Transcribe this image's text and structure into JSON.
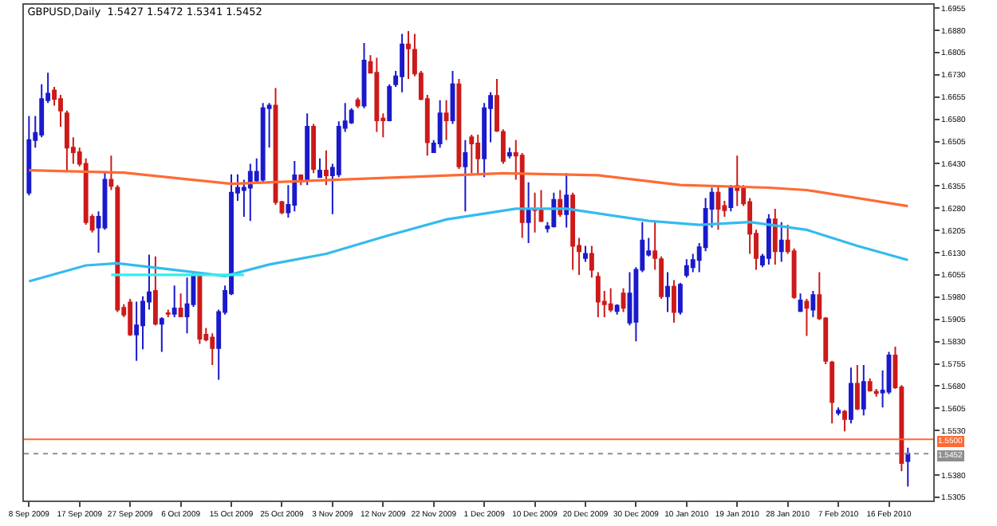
{
  "chart_data": {
    "type": "candlestick",
    "title": "GBPUSD,Daily  1.5427 1.5472 1.5341 1.5452",
    "categories": [
      "8 Sep 2009",
      null,
      null,
      null,
      null,
      null,
      null,
      null,
      "17 Sep 2009",
      null,
      null,
      null,
      null,
      null,
      null,
      null,
      "27 Sep 2009",
      null,
      null,
      null,
      null,
      null,
      null,
      null,
      "6 Oct 2009",
      null,
      null,
      null,
      null,
      null,
      null,
      null,
      "15 Oct 2009",
      null,
      null,
      null,
      null,
      null,
      null,
      null,
      "25 Oct 2009",
      null,
      null,
      null,
      null,
      null,
      null,
      null,
      "3 Nov 2009",
      null,
      null,
      null,
      null,
      null,
      null,
      null,
      "12 Nov 2009",
      null,
      null,
      null,
      null,
      null,
      null,
      null,
      "22 Nov 2009",
      null,
      null,
      null,
      null,
      null,
      null,
      null,
      "1 Dec 2009",
      null,
      null,
      null,
      null,
      null,
      null,
      null,
      "10 Dec 2009",
      null,
      null,
      null,
      null,
      null,
      null,
      null,
      "20 Dec 2009",
      null,
      null,
      null,
      null,
      null,
      null,
      null,
      "30 Dec 2009",
      null,
      null,
      null,
      null,
      null,
      null,
      null,
      "10 Jan 2010",
      null,
      null,
      null,
      null,
      null,
      null,
      null,
      "19 Jan 2010",
      null,
      null,
      null,
      null,
      null,
      null,
      null,
      "28 Jan 2010",
      null,
      null,
      null,
      null,
      null,
      null,
      null,
      "7 Feb 2010",
      null,
      null,
      null,
      null,
      null,
      null,
      null,
      "16 Feb 2010",
      null,
      null,
      null
    ],
    "ohlc": [
      [
        1.6332,
        1.6591,
        1.6323,
        1.651
      ],
      [
        1.651,
        1.6591,
        1.6484,
        1.6534
      ],
      [
        1.6528,
        1.6698,
        1.6519,
        1.6648
      ],
      [
        1.6644,
        1.6737,
        1.6635,
        1.6666
      ],
      [
        1.6677,
        1.6689,
        1.6626,
        1.6648
      ],
      [
        1.6648,
        1.6662,
        1.6555,
        1.6609
      ],
      [
        1.66,
        1.6609,
        1.6403,
        1.6484
      ],
      [
        1.6484,
        1.6519,
        1.643,
        1.6469
      ],
      [
        1.6469,
        1.6484,
        1.6421,
        1.643
      ],
      [
        1.643,
        1.6448,
        1.6224,
        1.6233
      ],
      [
        1.6251,
        1.626,
        1.6198,
        1.6207
      ],
      [
        1.6215,
        1.6269,
        1.613,
        1.6251
      ],
      [
        1.6215,
        1.6403,
        1.6207,
        1.6376
      ],
      [
        1.6376,
        1.6457,
        1.6341,
        1.6355
      ],
      [
        1.6349,
        1.6358,
        1.593,
        1.5938
      ],
      [
        1.5944,
        1.5956,
        1.5912,
        1.5921
      ],
      [
        1.5962,
        1.5974,
        1.5849,
        1.5854
      ],
      [
        1.5854,
        1.5965,
        1.5765,
        1.5885
      ],
      [
        1.5885,
        1.5983,
        1.5804,
        1.5965
      ],
      [
        1.5965,
        1.6123,
        1.5938,
        1.5996
      ],
      [
        1.6001,
        1.6117,
        1.5885,
        1.589
      ],
      [
        1.589,
        1.5912,
        1.5795,
        1.5906
      ],
      [
        1.5926,
        1.5938,
        1.5912,
        1.5924
      ],
      [
        1.5924,
        1.6019,
        1.5912,
        1.5942
      ],
      [
        1.5942,
        1.5992,
        1.5912,
        1.5915
      ],
      [
        1.5915,
        1.6046,
        1.5858,
        1.5956
      ],
      [
        1.5956,
        1.6064,
        1.5947,
        1.6051
      ],
      [
        1.6051,
        1.6064,
        1.5822,
        1.584
      ],
      [
        1.5853,
        1.5876,
        1.5831,
        1.5837
      ],
      [
        1.5844,
        1.5858,
        1.5751,
        1.5808
      ],
      [
        1.5808,
        1.5938,
        1.5701,
        1.593
      ],
      [
        1.593,
        1.6019,
        1.5921,
        1.6001
      ],
      [
        1.5992,
        1.6394,
        1.5987,
        1.6332
      ],
      [
        1.6332,
        1.6394,
        1.6305,
        1.6349
      ],
      [
        1.6341,
        1.6376,
        1.6251,
        1.6349
      ],
      [
        1.6349,
        1.643,
        1.6237,
        1.6403
      ],
      [
        1.6373,
        1.6448,
        1.6367,
        1.6403
      ],
      [
        1.6376,
        1.6635,
        1.6367,
        1.6617
      ],
      [
        1.6617,
        1.6635,
        1.6484,
        1.6626
      ],
      [
        1.6626,
        1.6685,
        1.6291,
        1.6301
      ],
      [
        1.6301,
        1.6305,
        1.626,
        1.6266
      ],
      [
        1.6266,
        1.6358,
        1.6248,
        1.6291
      ],
      [
        1.6291,
        1.6439,
        1.6269,
        1.6391
      ],
      [
        1.6391,
        1.6394,
        1.6358,
        1.6371
      ],
      [
        1.6373,
        1.66,
        1.6358,
        1.6555
      ],
      [
        1.6555,
        1.6564,
        1.6398,
        1.6412
      ],
      [
        1.6385,
        1.6448,
        1.6385,
        1.6407
      ],
      [
        1.6407,
        1.6475,
        1.6358,
        1.6391
      ],
      [
        1.6391,
        1.643,
        1.626,
        1.6416
      ],
      [
        1.6394,
        1.6573,
        1.6385,
        1.6555
      ],
      [
        1.6551,
        1.6635,
        1.6537,
        1.6573
      ],
      [
        1.6569,
        1.6617,
        1.6564,
        1.6609
      ],
      [
        1.6644,
        1.6653,
        1.6617,
        1.6626
      ],
      [
        1.6626,
        1.6837,
        1.6617,
        1.6778
      ],
      [
        1.6773,
        1.6796,
        1.6734,
        1.6737
      ],
      [
        1.6737,
        1.6787,
        1.6537,
        1.6576
      ],
      [
        1.6582,
        1.66,
        1.6519,
        1.6576
      ],
      [
        1.6576,
        1.6698,
        1.6573,
        1.6689
      ],
      [
        1.6698,
        1.6743,
        1.6689,
        1.6725
      ],
      [
        1.6725,
        1.6868,
        1.6671,
        1.6832
      ],
      [
        1.6832,
        1.6877,
        1.6716,
        1.6819
      ],
      [
        1.6814,
        1.6868,
        1.6725,
        1.6734
      ],
      [
        1.6734,
        1.6743,
        1.6644,
        1.6648
      ],
      [
        1.6648,
        1.6662,
        1.6457,
        1.6502
      ],
      [
        1.6469,
        1.651,
        1.6466,
        1.6498
      ],
      [
        1.6498,
        1.6644,
        1.6484,
        1.66
      ],
      [
        1.66,
        1.6644,
        1.651,
        1.6576
      ],
      [
        1.6576,
        1.6743,
        1.6564,
        1.6698
      ],
      [
        1.6698,
        1.6716,
        1.6412,
        1.6421
      ],
      [
        1.6421,
        1.651,
        1.6269,
        1.6466
      ],
      [
        1.6519,
        1.6528,
        1.6398,
        1.6498
      ],
      [
        1.6498,
        1.6528,
        1.6394,
        1.6448
      ],
      [
        1.6448,
        1.6635,
        1.6385,
        1.6617
      ],
      [
        1.6617,
        1.6671,
        1.6502,
        1.6659
      ],
      [
        1.6659,
        1.6716,
        1.6537,
        1.6541
      ],
      [
        1.6537,
        1.6546,
        1.643,
        1.6439
      ],
      [
        1.6457,
        1.6484,
        1.6448,
        1.6466
      ],
      [
        1.6466,
        1.651,
        1.6376,
        1.6457
      ],
      [
        1.6457,
        1.6466,
        1.618,
        1.6233
      ],
      [
        1.6233,
        1.6367,
        1.6162,
        1.6278
      ],
      [
        1.6278,
        1.6332,
        1.6198,
        1.6273
      ],
      [
        1.6278,
        1.6341,
        1.6233,
        1.6237
      ],
      [
        1.6212,
        1.6233,
        1.6198,
        1.6219
      ],
      [
        1.6219,
        1.6332,
        1.6215,
        1.6308
      ],
      [
        1.6308,
        1.6341,
        1.6251,
        1.626
      ],
      [
        1.626,
        1.6398,
        1.6215,
        1.6323
      ],
      [
        1.6323,
        1.6332,
        1.6072,
        1.6153
      ],
      [
        1.6153,
        1.618,
        1.6055,
        1.6135
      ],
      [
        1.6112,
        1.6153,
        1.6099,
        1.6126
      ],
      [
        1.6126,
        1.6153,
        1.6046,
        1.6072
      ],
      [
        1.6049,
        1.6064,
        1.5912,
        1.5965
      ],
      [
        1.5965,
        1.6001,
        1.5912,
        1.5956
      ],
      [
        1.5956,
        1.601,
        1.593,
        1.5938
      ],
      [
        1.5933,
        1.5956,
        1.5921,
        1.5951
      ],
      [
        1.5992,
        1.601,
        1.593,
        1.5944
      ],
      [
        1.5894,
        1.6064,
        1.5885,
        1.5992
      ],
      [
        1.5897,
        1.6081,
        1.5831,
        1.6072
      ],
      [
        1.6072,
        1.6233,
        1.6064,
        1.6171
      ],
      [
        1.6123,
        1.618,
        1.6117,
        1.6135
      ],
      [
        1.6135,
        1.6233,
        1.6072,
        1.6112
      ],
      [
        1.6108,
        1.6117,
        1.5974,
        1.5983
      ],
      [
        1.5983,
        1.6064,
        1.593,
        1.6015
      ],
      [
        1.6015,
        1.6037,
        1.5894,
        1.593
      ],
      [
        1.593,
        1.6028,
        1.5921,
        1.6022
      ],
      [
        1.6055,
        1.6108,
        1.6046,
        1.6085
      ],
      [
        1.6081,
        1.6126,
        1.6064,
        1.6105
      ],
      [
        1.6105,
        1.6162,
        1.6064,
        1.6148
      ],
      [
        1.6148,
        1.6314,
        1.6135,
        1.6278
      ],
      [
        1.6278,
        1.6349,
        1.6215,
        1.6332
      ],
      [
        1.6332,
        1.6358,
        1.6207,
        1.6278
      ],
      [
        1.6287,
        1.6305,
        1.6251,
        1.6273
      ],
      [
        1.6283,
        1.6358,
        1.6269,
        1.6349
      ],
      [
        1.6355,
        1.6457,
        1.6287,
        1.6341
      ],
      [
        1.6349,
        1.6358,
        1.6287,
        1.6296
      ],
      [
        1.6301,
        1.6314,
        1.6126,
        1.6194
      ],
      [
        1.6194,
        1.6207,
        1.6072,
        1.6112
      ],
      [
        1.609,
        1.6126,
        1.6081,
        1.6117
      ],
      [
        1.6112,
        1.626,
        1.609,
        1.6242
      ],
      [
        1.6242,
        1.6278,
        1.609,
        1.6135
      ],
      [
        1.6135,
        1.6233,
        1.6099,
        1.6171
      ],
      [
        1.6171,
        1.6224,
        1.6126,
        1.6135
      ],
      [
        1.6135,
        1.6144,
        1.5974,
        1.598
      ],
      [
        1.5933,
        1.5992,
        1.593,
        1.5969
      ],
      [
        1.5965,
        1.5974,
        1.5849,
        1.5944
      ],
      [
        1.5938,
        1.6001,
        1.5912,
        1.5987
      ],
      [
        1.5987,
        1.6064,
        1.5903,
        1.5908
      ],
      [
        1.5908,
        1.5912,
        1.5754,
        1.5765
      ],
      [
        1.576,
        1.5765,
        1.5554,
        1.5626
      ],
      [
        1.559,
        1.5608,
        1.5581,
        1.5597
      ],
      [
        1.5594,
        1.5599,
        1.5527,
        1.5569
      ],
      [
        1.5569,
        1.5742,
        1.5554,
        1.5688
      ],
      [
        1.5688,
        1.5751,
        1.5599,
        1.5604
      ],
      [
        1.5604,
        1.5751,
        1.5581,
        1.5694
      ],
      [
        1.5694,
        1.5706,
        1.5661,
        1.5665
      ],
      [
        1.5661,
        1.567,
        1.5644,
        1.5656
      ],
      [
        1.5658,
        1.5733,
        1.5608,
        1.5665
      ],
      [
        1.5661,
        1.5795,
        1.5653,
        1.5783
      ],
      [
        1.5783,
        1.5813,
        1.567,
        1.5676
      ],
      [
        1.5676,
        1.5683,
        1.5393,
        1.542
      ],
      [
        1.5427,
        1.5472,
        1.5341,
        1.5452
      ]
    ],
    "colors": [
      "#1a1acc",
      "#1a1acc",
      "#1a1acc",
      "#1a1acc",
      "#cc1a1a",
      "#cc1a1a",
      "#cc1a1a",
      "#cc1a1a",
      "#cc1a1a",
      "#cc1a1a",
      "#cc1a1a",
      "#1a1acc",
      "#1a1acc",
      "#cc1a1a",
      "#cc1a1a",
      "#cc1a1a",
      "#cc1a1a",
      "#1a1acc",
      "#1a1acc",
      "#1a1acc",
      "#cc1a1a",
      "#1a1acc",
      "#cc1a1a",
      "#1a1acc",
      "#cc1a1a",
      "#1a1acc",
      "#1a1acc",
      "#cc1a1a",
      "#cc1a1a",
      "#cc1a1a",
      "#1a1acc",
      "#1a1acc",
      "#1a1acc",
      "#1a1acc",
      "#1a1acc",
      "#1a1acc",
      "#1a1acc",
      "#1a1acc",
      "#1a1acc",
      "#cc1a1a",
      "#cc1a1a",
      "#1a1acc",
      "#1a1acc",
      "#cc1a1a",
      "#1a1acc",
      "#cc1a1a",
      "#1a1acc",
      "#cc1a1a",
      "#1a1acc",
      "#1a1acc",
      "#1a1acc",
      "#1a1acc",
      "#cc1a1a",
      "#1a1acc",
      "#cc1a1a",
      "#cc1a1a",
      "#cc1a1a",
      "#1a1acc",
      "#1a1acc",
      "#1a1acc",
      "#cc1a1a",
      "#cc1a1a",
      "#cc1a1a",
      "#cc1a1a",
      "#1a1acc",
      "#1a1acc",
      "#cc1a1a",
      "#1a1acc",
      "#cc1a1a",
      "#1a1acc",
      "#cc1a1a",
      "#cc1a1a",
      "#1a1acc",
      "#1a1acc",
      "#cc1a1a",
      "#cc1a1a",
      "#1a1acc",
      "#cc1a1a",
      "#cc1a1a",
      "#1a1acc",
      "#cc1a1a",
      "#cc1a1a",
      "#1a1acc",
      "#1a1acc",
      "#cc1a1a",
      "#1a1acc",
      "#cc1a1a",
      "#cc1a1a",
      "#1a1acc",
      "#cc1a1a",
      "#cc1a1a",
      "#cc1a1a",
      "#cc1a1a",
      "#1a1acc",
      "#cc1a1a",
      "#1a1acc",
      "#1a1acc",
      "#1a1acc",
      "#1a1acc",
      "#cc1a1a",
      "#cc1a1a",
      "#1a1acc",
      "#cc1a1a",
      "#1a1acc",
      "#1a1acc",
      "#1a1acc",
      "#1a1acc",
      "#1a1acc",
      "#1a1acc",
      "#cc1a1a",
      "#cc1a1a",
      "#1a1acc",
      "#cc1a1a",
      "#cc1a1a",
      "#cc1a1a",
      "#cc1a1a",
      "#1a1acc",
      "#1a1acc",
      "#cc1a1a",
      "#1a1acc",
      "#cc1a1a",
      "#cc1a1a",
      "#1a1acc",
      "#cc1a1a",
      "#1a1acc",
      "#cc1a1a",
      "#cc1a1a",
      "#cc1a1a",
      "#1a1acc",
      "#cc1a1a",
      "#1a1acc",
      "#cc1a1a",
      "#1a1acc",
      "#cc1a1a",
      "#cc1a1a",
      "#1a1acc",
      "#1a1acc",
      "#cc1a1a",
      "#cc1a1a",
      "#1a1acc"
    ],
    "series": [
      {
        "type": "line",
        "color": "#ff6a33",
        "values": [
          1.6408,
          null,
          null,
          null,
          null,
          null,
          null,
          null,
          null,
          null,
          null,
          null,
          null,
          null,
          null,
          1.64,
          null,
          null,
          null,
          null,
          null,
          null,
          null,
          null,
          null,
          null,
          null,
          null,
          null,
          null,
          null,
          null,
          1.6362,
          null,
          null,
          null,
          null,
          null,
          null,
          null,
          null,
          null,
          null,
          null,
          null,
          null,
          null,
          null,
          null,
          null,
          null,
          null,
          null,
          null,
          null,
          null,
          null,
          null,
          null,
          null,
          1.6385,
          null,
          null,
          null,
          null,
          null,
          null,
          null,
          null,
          null,
          null,
          null,
          null,
          null,
          null,
          1.6398,
          null,
          null,
          null,
          null,
          null,
          null,
          null,
          null,
          null,
          null,
          null,
          null,
          null,
          null,
          1.6391,
          null,
          null,
          null,
          null,
          null,
          null,
          null,
          null,
          null,
          null,
          null,
          null,
          1.6358,
          null,
          null,
          null,
          null,
          null,
          null,
          null,
          null,
          null,
          null,
          null,
          null,
          null,
          1.6349,
          null,
          null,
          null,
          null,
          null,
          1.6341,
          null,
          null,
          null,
          null,
          null,
          null,
          null,
          null,
          null,
          null,
          null,
          null,
          null,
          null,
          null,
          1.6287
        ]
      },
      {
        "type": "line",
        "color": "#33bbee",
        "values": [
          1.6033,
          null,
          null,
          null,
          null,
          null,
          null,
          null,
          null,
          1.6087,
          null,
          null,
          null,
          null,
          1.6094,
          null,
          null,
          null,
          null,
          null,
          null,
          null,
          null,
          1.6072,
          null,
          null,
          null,
          null,
          null,
          null,
          null,
          1.6051,
          null,
          null,
          null,
          null,
          null,
          null,
          1.609,
          null,
          null,
          null,
          null,
          null,
          null,
          null,
          null,
          1.6126,
          null,
          null,
          null,
          null,
          null,
          null,
          null,
          null,
          null,
          1.6189,
          null,
          null,
          null,
          null,
          null,
          null,
          null,
          null,
          1.6242,
          null,
          null,
          null,
          null,
          null,
          null,
          null,
          null,
          null,
          null,
          1.6278,
          null,
          null,
          null,
          null,
          null,
          null,
          null,
          1.6278,
          null,
          null,
          null,
          null,
          null,
          null,
          null,
          null,
          null,
          null,
          null,
          null,
          1.6237,
          null,
          null,
          null,
          null,
          null,
          null,
          null,
          1.6224,
          null,
          null,
          null,
          null,
          null,
          null,
          null,
          1.6233,
          null,
          null,
          null,
          null,
          null,
          null,
          null,
          null,
          1.6207,
          null,
          null,
          null,
          null,
          null,
          null,
          null,
          1.6153,
          null,
          null,
          null,
          null,
          null,
          null,
          null,
          1.6105
        ]
      },
      {
        "type": "line",
        "color": "#33eeee",
        "values": [
          null,
          null,
          null,
          null,
          null,
          null,
          null,
          null,
          null,
          null,
          null,
          null,
          null,
          1.6055,
          1.6055,
          1.6055,
          1.6055,
          1.6055,
          1.6055,
          1.6055,
          1.6055,
          1.6055,
          1.6055,
          1.6055,
          1.6055,
          1.6055,
          1.6055,
          1.6055,
          1.6055,
          1.6055,
          1.6055,
          1.6055,
          1.6055,
          1.6055,
          1.6055,
          null,
          null,
          null,
          null,
          null,
          null,
          null,
          null,
          null,
          null,
          null,
          null,
          null,
          null,
          null,
          null,
          null,
          null,
          null,
          null,
          null,
          null,
          null,
          null,
          null,
          null,
          null,
          null,
          null,
          null,
          null,
          null,
          null,
          null,
          null,
          null,
          null,
          null,
          null,
          null,
          null,
          null,
          null,
          null,
          null,
          null,
          null,
          null,
          null,
          null,
          null,
          null,
          null,
          null,
          null,
          null,
          null,
          null,
          null,
          null,
          null,
          null,
          null,
          null,
          null,
          null,
          null,
          null,
          null,
          null,
          null,
          null,
          null,
          null,
          null,
          null,
          null,
          null,
          null,
          null,
          null,
          null,
          null,
          null,
          null,
          null,
          null,
          null,
          null,
          null,
          null,
          null,
          null,
          null,
          null,
          null,
          null,
          null,
          null,
          null,
          null,
          null,
          null,
          null,
          null
        ]
      }
    ],
    "ylim": [
      1.5294,
      1.6966
    ],
    "yticks": [
      1.6955,
      {
        "value": 1.688,
        "label": "1.6880"
      },
      1.6805,
      {
        "value": 1.673,
        "label": "1.6730"
      },
      1.6655,
      {
        "value": 1.658,
        "label": "1.6580"
      },
      1.6505,
      {
        "value": 1.643,
        "label": "1.6430"
      },
      1.6355,
      {
        "value": 1.628,
        "label": "1.6280"
      },
      1.6205,
      {
        "value": 1.613,
        "label": "1.6130"
      },
      1.6055,
      {
        "value": 1.598,
        "label": "1.5980"
      },
      1.5905,
      {
        "value": 1.583,
        "label": "1.5830"
      },
      1.5755,
      {
        "value": 1.568,
        "label": "1.5680"
      },
      1.5605,
      {
        "value": 1.553,
        "label": "1.5530"
      },
      {
        "value": 1.538,
        "label": "1.5380"
      },
      1.5305
    ],
    "ref_lines": [
      {
        "axis": "y",
        "value": 1.55,
        "label": "1.5500",
        "color": "#ff6a33"
      },
      {
        "axis": "y",
        "value": 1.5452,
        "label": "1.5452",
        "color": "#909090",
        "line_style": "dotted"
      }
    ]
  }
}
